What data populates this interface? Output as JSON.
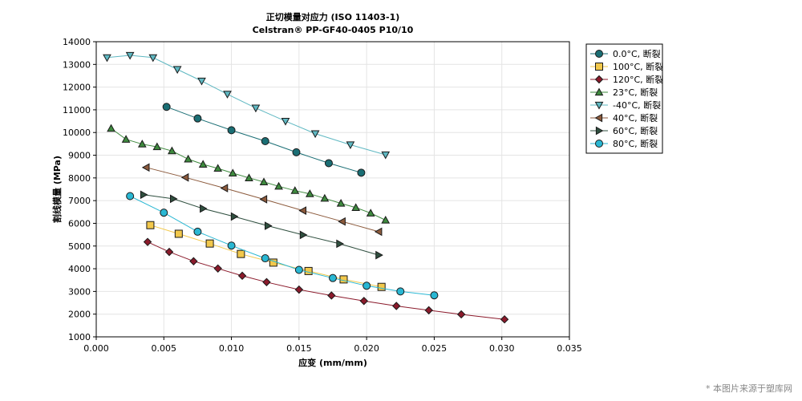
{
  "watermark": "* 本图片来源于塑库网",
  "chart_data": {
    "type": "line",
    "title": "正切模量对应力 (ISO 11403-1)",
    "subtitle": "Celstran® PP-GF40-0405 P10/10",
    "xlabel": "应变 (mm/mm)",
    "ylabel": "割线模量 (MPa)",
    "xlim": [
      0,
      0.035
    ],
    "ylim": [
      1000,
      14000
    ],
    "xticks": [
      0.0,
      0.005,
      0.01,
      0.015,
      0.02,
      0.025,
      0.03,
      0.035
    ],
    "xtick_labels": [
      "0.000",
      "0.005",
      "0.010",
      "0.015",
      "0.020",
      "0.025",
      "0.030",
      "0.035"
    ],
    "yticks": [
      1000,
      2000,
      3000,
      4000,
      5000,
      6000,
      7000,
      8000,
      9000,
      10000,
      11000,
      12000,
      13000,
      14000
    ],
    "ytick_labels": [
      "1000",
      "2000",
      "3000",
      "4000",
      "5000",
      "6000",
      "7000",
      "8000",
      "9000",
      "10000",
      "11000",
      "12000",
      "13000",
      "14000"
    ],
    "grid": true,
    "legend_position": "right",
    "series": [
      {
        "name": "0.0°C, 断裂",
        "color": "#1a6e74",
        "marker": "circle",
        "x": [
          0.0052,
          0.0075,
          0.01,
          0.0125,
          0.0148,
          0.0172,
          0.0196
        ],
        "y": [
          11130,
          10620,
          10100,
          9620,
          9130,
          8650,
          8230
        ]
      },
      {
        "name": "100°C, 断裂",
        "color": "#f2c84b",
        "marker": "square",
        "x": [
          0.004,
          0.0061,
          0.0084,
          0.0107,
          0.0131,
          0.0157,
          0.0183,
          0.0211
        ],
        "y": [
          5920,
          5540,
          5110,
          4650,
          4270,
          3900,
          3530,
          3200
        ]
      },
      {
        "name": "120°C, 断裂",
        "color": "#8b1a2b",
        "marker": "diamond",
        "x": [
          0.0038,
          0.0054,
          0.0072,
          0.009,
          0.0108,
          0.0126,
          0.015,
          0.0174,
          0.0198,
          0.0222,
          0.0246,
          0.027,
          0.0302
        ],
        "y": [
          5180,
          4740,
          4330,
          4010,
          3690,
          3410,
          3080,
          2820,
          2580,
          2360,
          2170,
          1990,
          1770
        ]
      },
      {
        "name": "23°C, 断裂",
        "color": "#3e8a3e",
        "marker": "triangle-up",
        "x": [
          0.0011,
          0.0022,
          0.0034,
          0.0045,
          0.0056,
          0.0068,
          0.0079,
          0.009,
          0.0101,
          0.0113,
          0.0124,
          0.0135,
          0.0147,
          0.0158,
          0.0169,
          0.0181,
          0.0192,
          0.0203,
          0.0214
        ],
        "y": [
          10180,
          9700,
          9490,
          9370,
          9190,
          8830,
          8600,
          8420,
          8210,
          8000,
          7820,
          7630,
          7440,
          7300,
          7100,
          6880,
          6690,
          6450,
          6140
        ]
      },
      {
        "name": "-40°C, 断裂",
        "color": "#5fb8c2",
        "marker": "triangle-down",
        "x": [
          0.0008,
          0.0025,
          0.0042,
          0.006,
          0.0078,
          0.0097,
          0.0118,
          0.014,
          0.0162,
          0.0188,
          0.0214
        ],
        "y": [
          13300,
          13400,
          13300,
          12780,
          12270,
          11690,
          11080,
          10500,
          9950,
          9460,
          9020
        ]
      },
      {
        "name": "40°C, 断裂",
        "color": "#8c5a3c",
        "marker": "triangle-left",
        "x": [
          0.0037,
          0.0066,
          0.0095,
          0.0124,
          0.0153,
          0.0182,
          0.0209
        ],
        "y": [
          8460,
          8020,
          7550,
          7060,
          6560,
          6080,
          5630
        ]
      },
      {
        "name": "60°C, 断裂",
        "color": "#2f4f3f",
        "marker": "triangle-right",
        "x": [
          0.0035,
          0.0057,
          0.0079,
          0.0102,
          0.0127,
          0.0153,
          0.018,
          0.0209
        ],
        "y": [
          7260,
          7080,
          6650,
          6300,
          5890,
          5490,
          5100,
          4600
        ]
      },
      {
        "name": "80°C, 断裂",
        "color": "#29b7d3",
        "marker": "circle",
        "x": [
          0.0025,
          0.005,
          0.0075,
          0.01,
          0.0125,
          0.015,
          0.0175,
          0.02,
          0.0225,
          0.025
        ],
        "y": [
          7200,
          6470,
          5630,
          5020,
          4460,
          3950,
          3590,
          3250,
          3000,
          2830
        ]
      }
    ]
  }
}
